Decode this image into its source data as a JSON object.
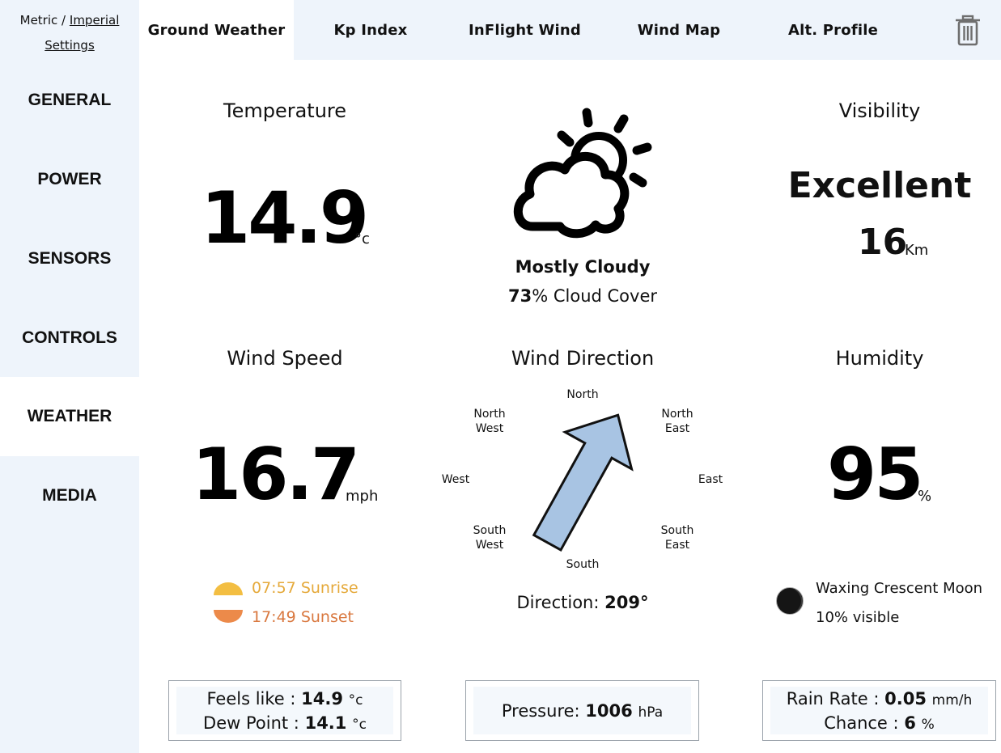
{
  "units": {
    "metric": "Metric",
    "separator": "/",
    "imperial": "Imperial",
    "settings": "Settings"
  },
  "sidebar": {
    "items": [
      {
        "label": "GENERAL"
      },
      {
        "label": "POWER"
      },
      {
        "label": "SENSORS"
      },
      {
        "label": "CONTROLS"
      },
      {
        "label": "WEATHER",
        "active": true
      },
      {
        "label": "MEDIA"
      }
    ]
  },
  "tabs": [
    {
      "label": "Ground Weather",
      "active": true
    },
    {
      "label": "Kp Index"
    },
    {
      "label": "InFlight Wind"
    },
    {
      "label": "Wind Map"
    },
    {
      "label": "Alt. Profile"
    }
  ],
  "icons": {
    "delete": "trash-icon",
    "condition": "partly-cloudy-icon",
    "moon": "moon-icon",
    "sunrise": "sunrise-icon",
    "sunset": "sunset-icon"
  },
  "temperature": {
    "title": "Temperature",
    "value": "14.9",
    "unit": "°c"
  },
  "condition": {
    "label": "Mostly Cloudy",
    "cloud_cover_value": "73",
    "cloud_cover_text": "% Cloud Cover"
  },
  "visibility": {
    "title": "Visibility",
    "rating": "Excellent",
    "value": "16",
    "unit": "Km"
  },
  "wind_speed": {
    "title": "Wind Speed",
    "value": "16.7",
    "unit": "mph"
  },
  "wind_direction": {
    "title": "Wind Direction",
    "degrees": 209,
    "direction_label": "Direction:",
    "direction_value": "209°",
    "compass": {
      "north": "North",
      "south": "South",
      "east": "East",
      "west": "West",
      "north_west_1": "North",
      "north_west_2": "West",
      "north_east_1": "North",
      "north_east_2": "East",
      "south_west_1": "South",
      "south_west_2": "West",
      "south_east_1": "South",
      "south_east_2": "East"
    }
  },
  "humidity": {
    "title": "Humidity",
    "value": "95",
    "unit": "%"
  },
  "sun": {
    "sunrise_time": "07:57",
    "sunrise_label": "Sunrise",
    "sunset_time": "17:49",
    "sunset_label": "Sunset"
  },
  "moon": {
    "phase": "Waxing Crescent Moon",
    "visible": "10% visible"
  },
  "feels": {
    "feels_label": "Feels like :",
    "feels_value": "14.9",
    "feels_unit": "°c",
    "dew_label": "Dew Point :",
    "dew_value": "14.1",
    "dew_unit": "°c"
  },
  "pressure": {
    "label": "Pressure:",
    "value": "1006",
    "unit": "hPa"
  },
  "rain": {
    "rate_label": "Rain Rate :",
    "rate_value": "0.05",
    "rate_unit": "mm/h",
    "chance_label": "Chance :",
    "chance_value": "6",
    "chance_unit": "%"
  },
  "colors": {
    "sidebar_bg": "#eef4fb",
    "arrow_fill": "#a8c4e3",
    "sunrise": "#e5a93a",
    "sunset": "#d9783f"
  }
}
